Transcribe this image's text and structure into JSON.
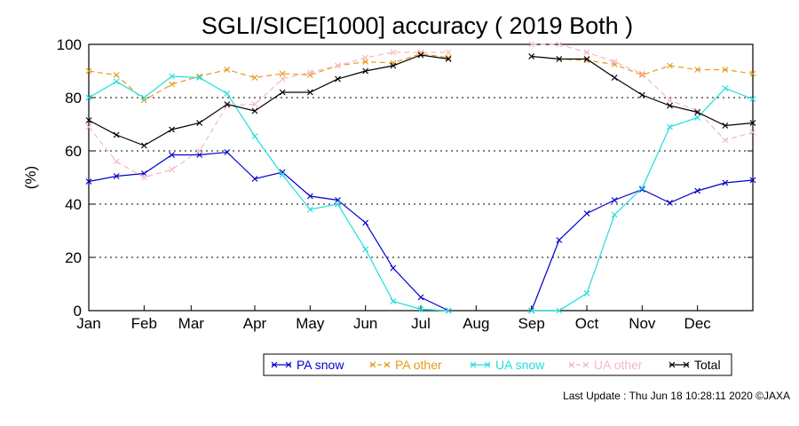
{
  "chart_data": {
    "type": "line",
    "title": "SGLI/SICE[1000] accuracy ( 2019 Both )",
    "ylabel": "(%)",
    "xlabel": "",
    "ylim": [
      0,
      100
    ],
    "y_ticks": [
      0,
      20,
      40,
      60,
      80,
      100
    ],
    "x_range": [
      1,
      25
    ],
    "month_ticks": [
      {
        "label": "Jan",
        "x": 1
      },
      {
        "label": "Feb",
        "x": 3
      },
      {
        "label": "Mar",
        "x": 4.7
      },
      {
        "label": "Apr",
        "x": 7
      },
      {
        "label": "May",
        "x": 9
      },
      {
        "label": "Jun",
        "x": 11
      },
      {
        "label": "Jul",
        "x": 13
      },
      {
        "label": "Aug",
        "x": 15
      },
      {
        "label": "Sep",
        "x": 17
      },
      {
        "label": "Oct",
        "x": 19
      },
      {
        "label": "Nov",
        "x": 21
      },
      {
        "label": "Dec",
        "x": 23
      }
    ],
    "grid": "horizontal dotted",
    "legend_position": "bottom-right",
    "series": [
      {
        "name": "PA snow",
        "color": "#0000cc",
        "dash": false,
        "points": [
          [
            1,
            48.5
          ],
          [
            2,
            50.5
          ],
          [
            3,
            51.5
          ],
          [
            4,
            58.5
          ],
          [
            5,
            58.5
          ],
          [
            6,
            59.5
          ],
          [
            7,
            49.5
          ],
          [
            8,
            52
          ],
          [
            9,
            43
          ],
          [
            10,
            41.5
          ],
          [
            11,
            33
          ],
          [
            12,
            16
          ],
          [
            13,
            5
          ],
          [
            14,
            0
          ],
          [
            17,
            0
          ],
          [
            18,
            26.5
          ],
          [
            19,
            36.5
          ],
          [
            20,
            41.5
          ],
          [
            21,
            45.5
          ],
          [
            22,
            40.5
          ],
          [
            23,
            45
          ],
          [
            24,
            48
          ],
          [
            25,
            49
          ]
        ]
      },
      {
        "name": "PA other",
        "color": "#e89a1a",
        "dash": true,
        "points": [
          [
            1,
            90
          ],
          [
            2,
            88.5
          ],
          [
            3,
            79
          ],
          [
            4,
            85
          ],
          [
            5,
            88
          ],
          [
            6,
            90.5
          ],
          [
            7,
            87.5
          ],
          [
            8,
            89
          ],
          [
            9,
            88.5
          ],
          [
            10,
            92
          ],
          [
            11,
            93.5
          ],
          [
            12,
            93
          ],
          [
            13,
            96.5
          ],
          [
            14,
            95
          ],
          [
            17,
            95.5
          ],
          [
            18,
            94.5
          ],
          [
            19,
            94
          ],
          [
            20,
            92.5
          ],
          [
            21,
            88.5
          ],
          [
            22,
            92
          ],
          [
            23,
            90.5
          ],
          [
            24,
            90.5
          ],
          [
            25,
            89
          ]
        ]
      },
      {
        "name": "UA snow",
        "color": "#22dddd",
        "dash": false,
        "points": [
          [
            1,
            80
          ],
          [
            2,
            86
          ],
          [
            3,
            80
          ],
          [
            4,
            88
          ],
          [
            5,
            87.5
          ],
          [
            6,
            81.5
          ],
          [
            7,
            65.5
          ],
          [
            8,
            51
          ],
          [
            9,
            38
          ],
          [
            10,
            40
          ],
          [
            11,
            23
          ],
          [
            12,
            3.5
          ],
          [
            13,
            0.5
          ],
          [
            14,
            0
          ],
          [
            17,
            0
          ],
          [
            18,
            0
          ],
          [
            19,
            6.5
          ],
          [
            20,
            36
          ],
          [
            21,
            46
          ],
          [
            22,
            69
          ],
          [
            23,
            72.5
          ],
          [
            24,
            83.5
          ],
          [
            25,
            79.5
          ]
        ]
      },
      {
        "name": "UA other",
        "color": "#f5b8c0",
        "dash": true,
        "points": [
          [
            1,
            69
          ],
          [
            2,
            56
          ],
          [
            3,
            50
          ],
          [
            4,
            53
          ],
          [
            5,
            60
          ],
          [
            6,
            77
          ],
          [
            7,
            77.5
          ],
          [
            8,
            87
          ],
          [
            9,
            89.5
          ],
          [
            10,
            92
          ],
          [
            11,
            95
          ],
          [
            12,
            97
          ],
          [
            13,
            97
          ],
          [
            14,
            97
          ],
          [
            17,
            100
          ],
          [
            18,
            100
          ],
          [
            19,
            97
          ],
          [
            20,
            93.5
          ],
          [
            21,
            89
          ],
          [
            22,
            79
          ],
          [
            23,
            75
          ],
          [
            24,
            64
          ],
          [
            25,
            67
          ]
        ]
      },
      {
        "name": "Total",
        "color": "#000000",
        "dash": false,
        "points": [
          [
            1,
            71.5
          ],
          [
            2,
            66
          ],
          [
            3,
            62
          ],
          [
            4,
            68
          ],
          [
            5,
            70.5
          ],
          [
            6,
            77.5
          ],
          [
            7,
            75
          ],
          [
            8,
            82
          ],
          [
            9,
            82
          ],
          [
            10,
            87
          ],
          [
            11,
            90
          ],
          [
            12,
            92
          ],
          [
            13,
            96
          ],
          [
            14,
            94.5
          ],
          [
            17,
            95.5
          ],
          [
            18,
            94.5
          ],
          [
            19,
            94.5
          ],
          [
            20,
            87.5
          ],
          [
            21,
            81
          ],
          [
            22,
            77
          ],
          [
            23,
            74.5
          ],
          [
            24,
            69.5
          ],
          [
            25,
            70.5
          ]
        ]
      }
    ]
  },
  "footer": "Last Update : Thu Jun 18 10:28:11 2020  ©JAXA"
}
